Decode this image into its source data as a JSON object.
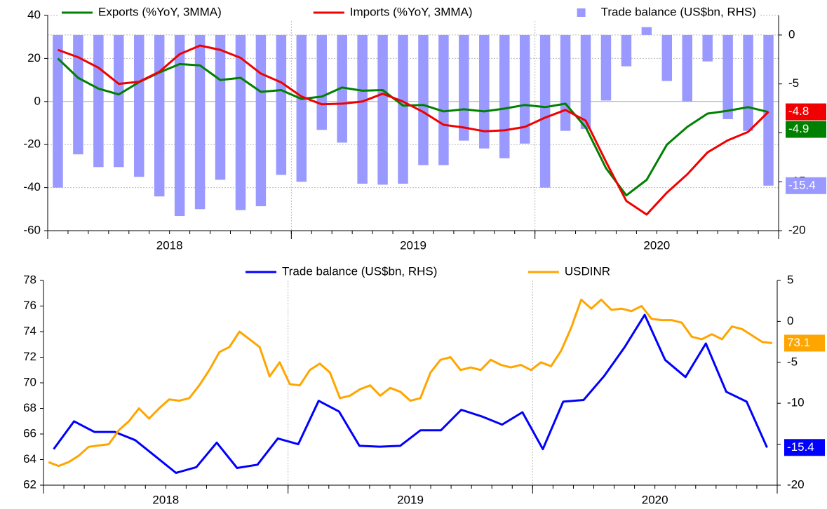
{
  "chart_data": [
    {
      "type": "combo",
      "categories": [
        null,
        null,
        null,
        null,
        null,
        null,
        null,
        null,
        null,
        null,
        null,
        null,
        null,
        null,
        null,
        null,
        null,
        null,
        null,
        null,
        null,
        null,
        null,
        null,
        null,
        null,
        null,
        null,
        null,
        null,
        null,
        null,
        null,
        null,
        null,
        null
      ],
      "x_labels": [
        "2018",
        "2019",
        "2020"
      ],
      "ylim": [
        -60,
        40
      ],
      "yticks": [
        -60,
        -40,
        -20,
        0,
        20,
        40
      ],
      "y2lim": [
        -20,
        2
      ],
      "y2ticks": [
        -20,
        -15,
        -10,
        -5,
        0
      ],
      "grid": true,
      "legend": "top",
      "series": [
        {
          "name": "Exports (%YoY, 3MMA)",
          "type": "line",
          "color": "#008000",
          "values": [
            20,
            11,
            6,
            3.3,
            9,
            13.5,
            17.4,
            16.8,
            10,
            11,
            4.5,
            5.3,
            1.2,
            2.3,
            6.5,
            5,
            5.3,
            -1.9,
            -1.6,
            -4.6,
            -3.6,
            -4.6,
            -3.3,
            -1.6,
            -2.6,
            -1,
            -12,
            -31,
            -43.6,
            -36.4,
            -20,
            -11.8,
            -5.6,
            -4.3,
            -2.6,
            -4.9
          ],
          "end_label": "-4.9"
        },
        {
          "name": "Imports (%YoY, 3MMA)",
          "type": "line",
          "color": "#f00000",
          "values": [
            24,
            20.6,
            15.7,
            8.2,
            9.2,
            13.8,
            22,
            26,
            24,
            20.3,
            13,
            8.9,
            2.3,
            -1.3,
            -1,
            0,
            3.6,
            0,
            -4.9,
            -10.8,
            -12.1,
            -13.8,
            -13.4,
            -11.8,
            -7.5,
            -3.9,
            -8.9,
            -28,
            -46.2,
            -52.5,
            -42.3,
            -33.8,
            -23.6,
            -18,
            -14.1,
            -4.8
          ],
          "end_label": "-4.8"
        },
        {
          "name": "Trade balance (US$bn, RHS)",
          "type": "bar",
          "axis": "y2",
          "color": "#9999ff",
          "values": [
            -15.6,
            -12.2,
            -13.5,
            -13.5,
            -14.5,
            -16.5,
            -18.5,
            -17.8,
            -14.8,
            -17.9,
            -17.5,
            -14.3,
            -15,
            -9.7,
            -11,
            -15.2,
            -15.3,
            -15.2,
            -13.3,
            -13.3,
            -10.8,
            -11.6,
            -12.6,
            -11.1,
            -15.6,
            -9.8,
            -9.6,
            -6.7,
            -3.2,
            0.8,
            -4.7,
            -6.8,
            -2.7,
            -8.6,
            -9.8,
            -15.4
          ],
          "end_label": "-15.4"
        }
      ]
    },
    {
      "type": "line",
      "x_labels": [
        "2018",
        "2019",
        "2020"
      ],
      "ylim": [
        62,
        78
      ],
      "yticks": [
        62,
        64,
        66,
        68,
        70,
        72,
        74,
        76,
        78
      ],
      "y2lim": [
        -20,
        5
      ],
      "y2ticks": [
        -20,
        -15,
        -10,
        -5,
        0,
        5
      ],
      "grid": false,
      "legend": "top",
      "series": [
        {
          "name": "Trade balance (US$bn, RHS)",
          "type": "line",
          "axis": "y2",
          "color": "#0000ff",
          "values": [
            -15.6,
            -12.2,
            -13.5,
            -13.5,
            -14.5,
            -16.5,
            -18.5,
            -17.8,
            -14.8,
            -17.9,
            -17.5,
            -14.3,
            -15,
            -9.7,
            -11,
            -15.2,
            -15.3,
            -15.2,
            -13.3,
            -13.3,
            -10.8,
            -11.6,
            -12.6,
            -11.1,
            -15.6,
            -9.8,
            -9.6,
            -6.7,
            -3.2,
            0.8,
            -4.7,
            -6.8,
            -2.7,
            -8.6,
            -9.8,
            -15.4
          ],
          "end_label": "-15.4"
        },
        {
          "name": "USDINR",
          "type": "line",
          "color": "#ffa500",
          "values": [
            63.8,
            63.5,
            63.8,
            64.3,
            65.0,
            65.1,
            65.2,
            66.3,
            67.0,
            68.0,
            67.2,
            68.0,
            68.7,
            68.6,
            68.8,
            69.8,
            71.0,
            72.4,
            72.8,
            74.0,
            73.4,
            72.8,
            70.5,
            71.6,
            69.9,
            69.8,
            71.0,
            71.5,
            70.8,
            68.8,
            69.0,
            69.5,
            69.8,
            69.0,
            69.6,
            69.3,
            68.6,
            68.8,
            70.8,
            71.8,
            72.0,
            71.0,
            71.2,
            71.0,
            71.8,
            71.4,
            71.2,
            71.4,
            71.0,
            71.6,
            71.3,
            72.5,
            74.3,
            76.5,
            75.8,
            76.5,
            75.7,
            75.8,
            75.6,
            76.0,
            75.0,
            74.9,
            74.9,
            74.7,
            73.6,
            73.4,
            73.8,
            73.4,
            74.4,
            74.2,
            73.7,
            73.2,
            73.1
          ],
          "end_label": "73.1"
        }
      ]
    }
  ]
}
